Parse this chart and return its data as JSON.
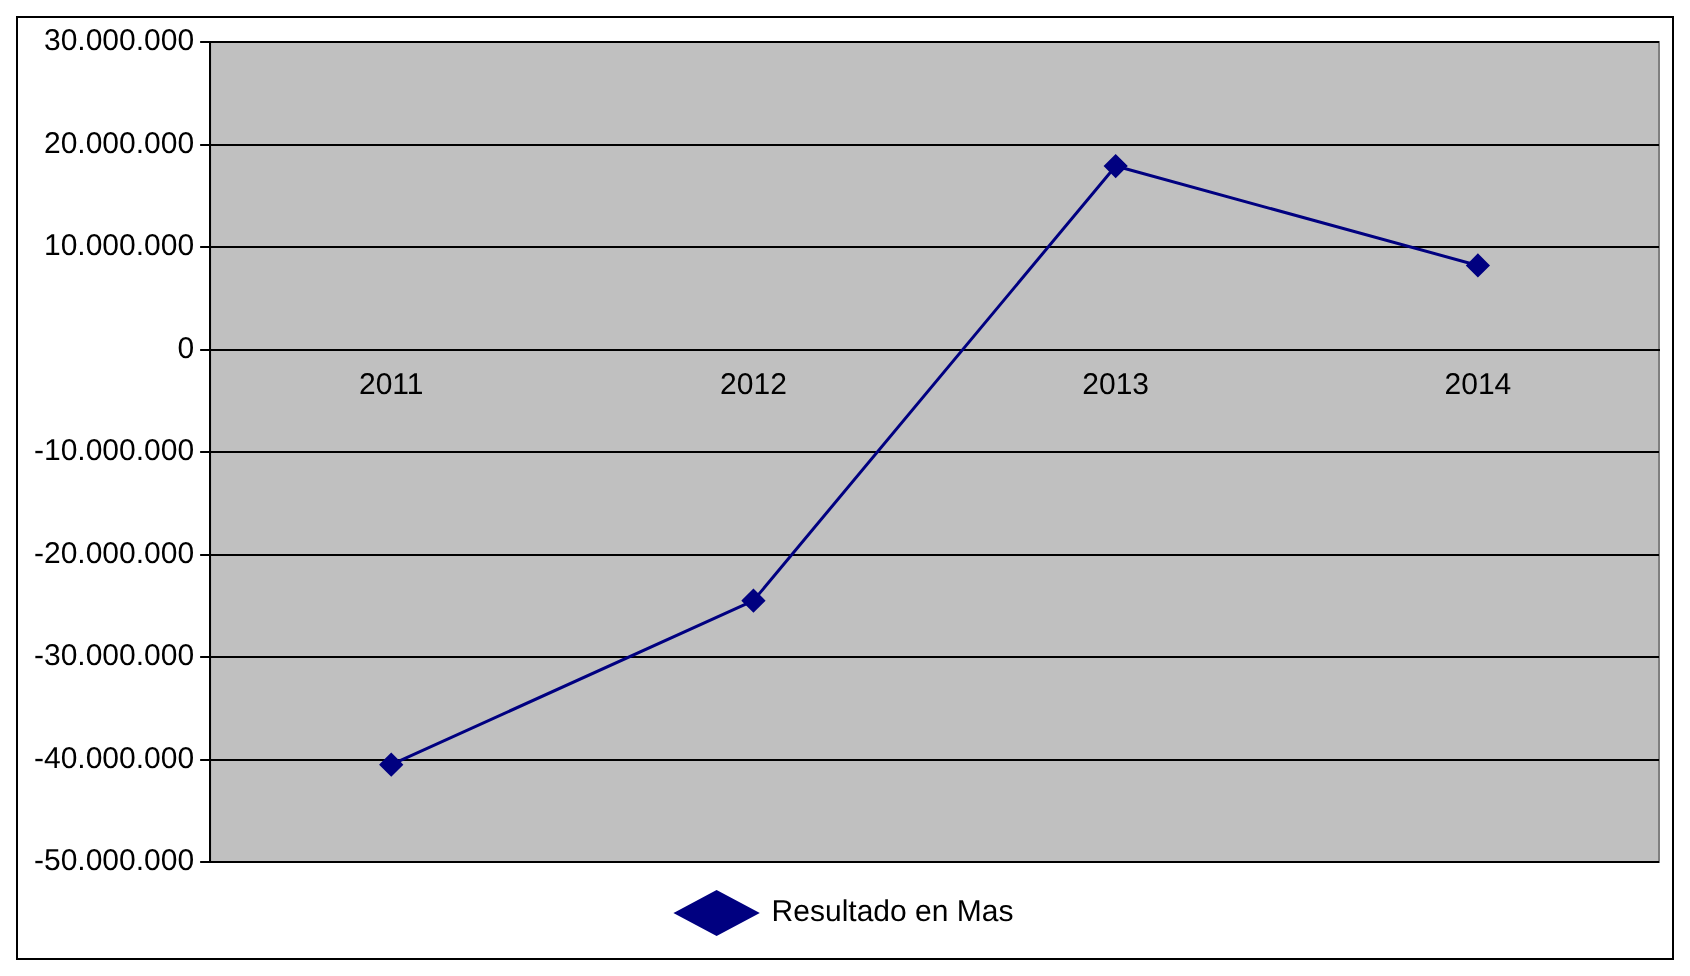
{
  "chart_data": {
    "type": "line",
    "categories": [
      "2011",
      "2012",
      "2013",
      "2014"
    ],
    "series": [
      {
        "name": "Resultado en Mas",
        "color": "#000080",
        "values": [
          -40500000,
          -24500000,
          17900000,
          8200000
        ]
      }
    ],
    "ylim": [
      -50000000,
      30000000
    ],
    "yticks": [
      {
        "value": -50000000,
        "label": "-50.000.000"
      },
      {
        "value": -40000000,
        "label": "-40.000.000"
      },
      {
        "value": -30000000,
        "label": "-30.000.000"
      },
      {
        "value": -20000000,
        "label": "-20.000.000"
      },
      {
        "value": -10000000,
        "label": "-10.000.000"
      },
      {
        "value": 0,
        "label": "0"
      },
      {
        "value": 10000000,
        "label": "10.000.000"
      },
      {
        "value": 20000000,
        "label": "20.000.000"
      },
      {
        "value": 30000000,
        "label": "30.000.000"
      }
    ],
    "grid": "y",
    "legend": "bottom",
    "marker": "diamond",
    "line_style": "solid"
  }
}
